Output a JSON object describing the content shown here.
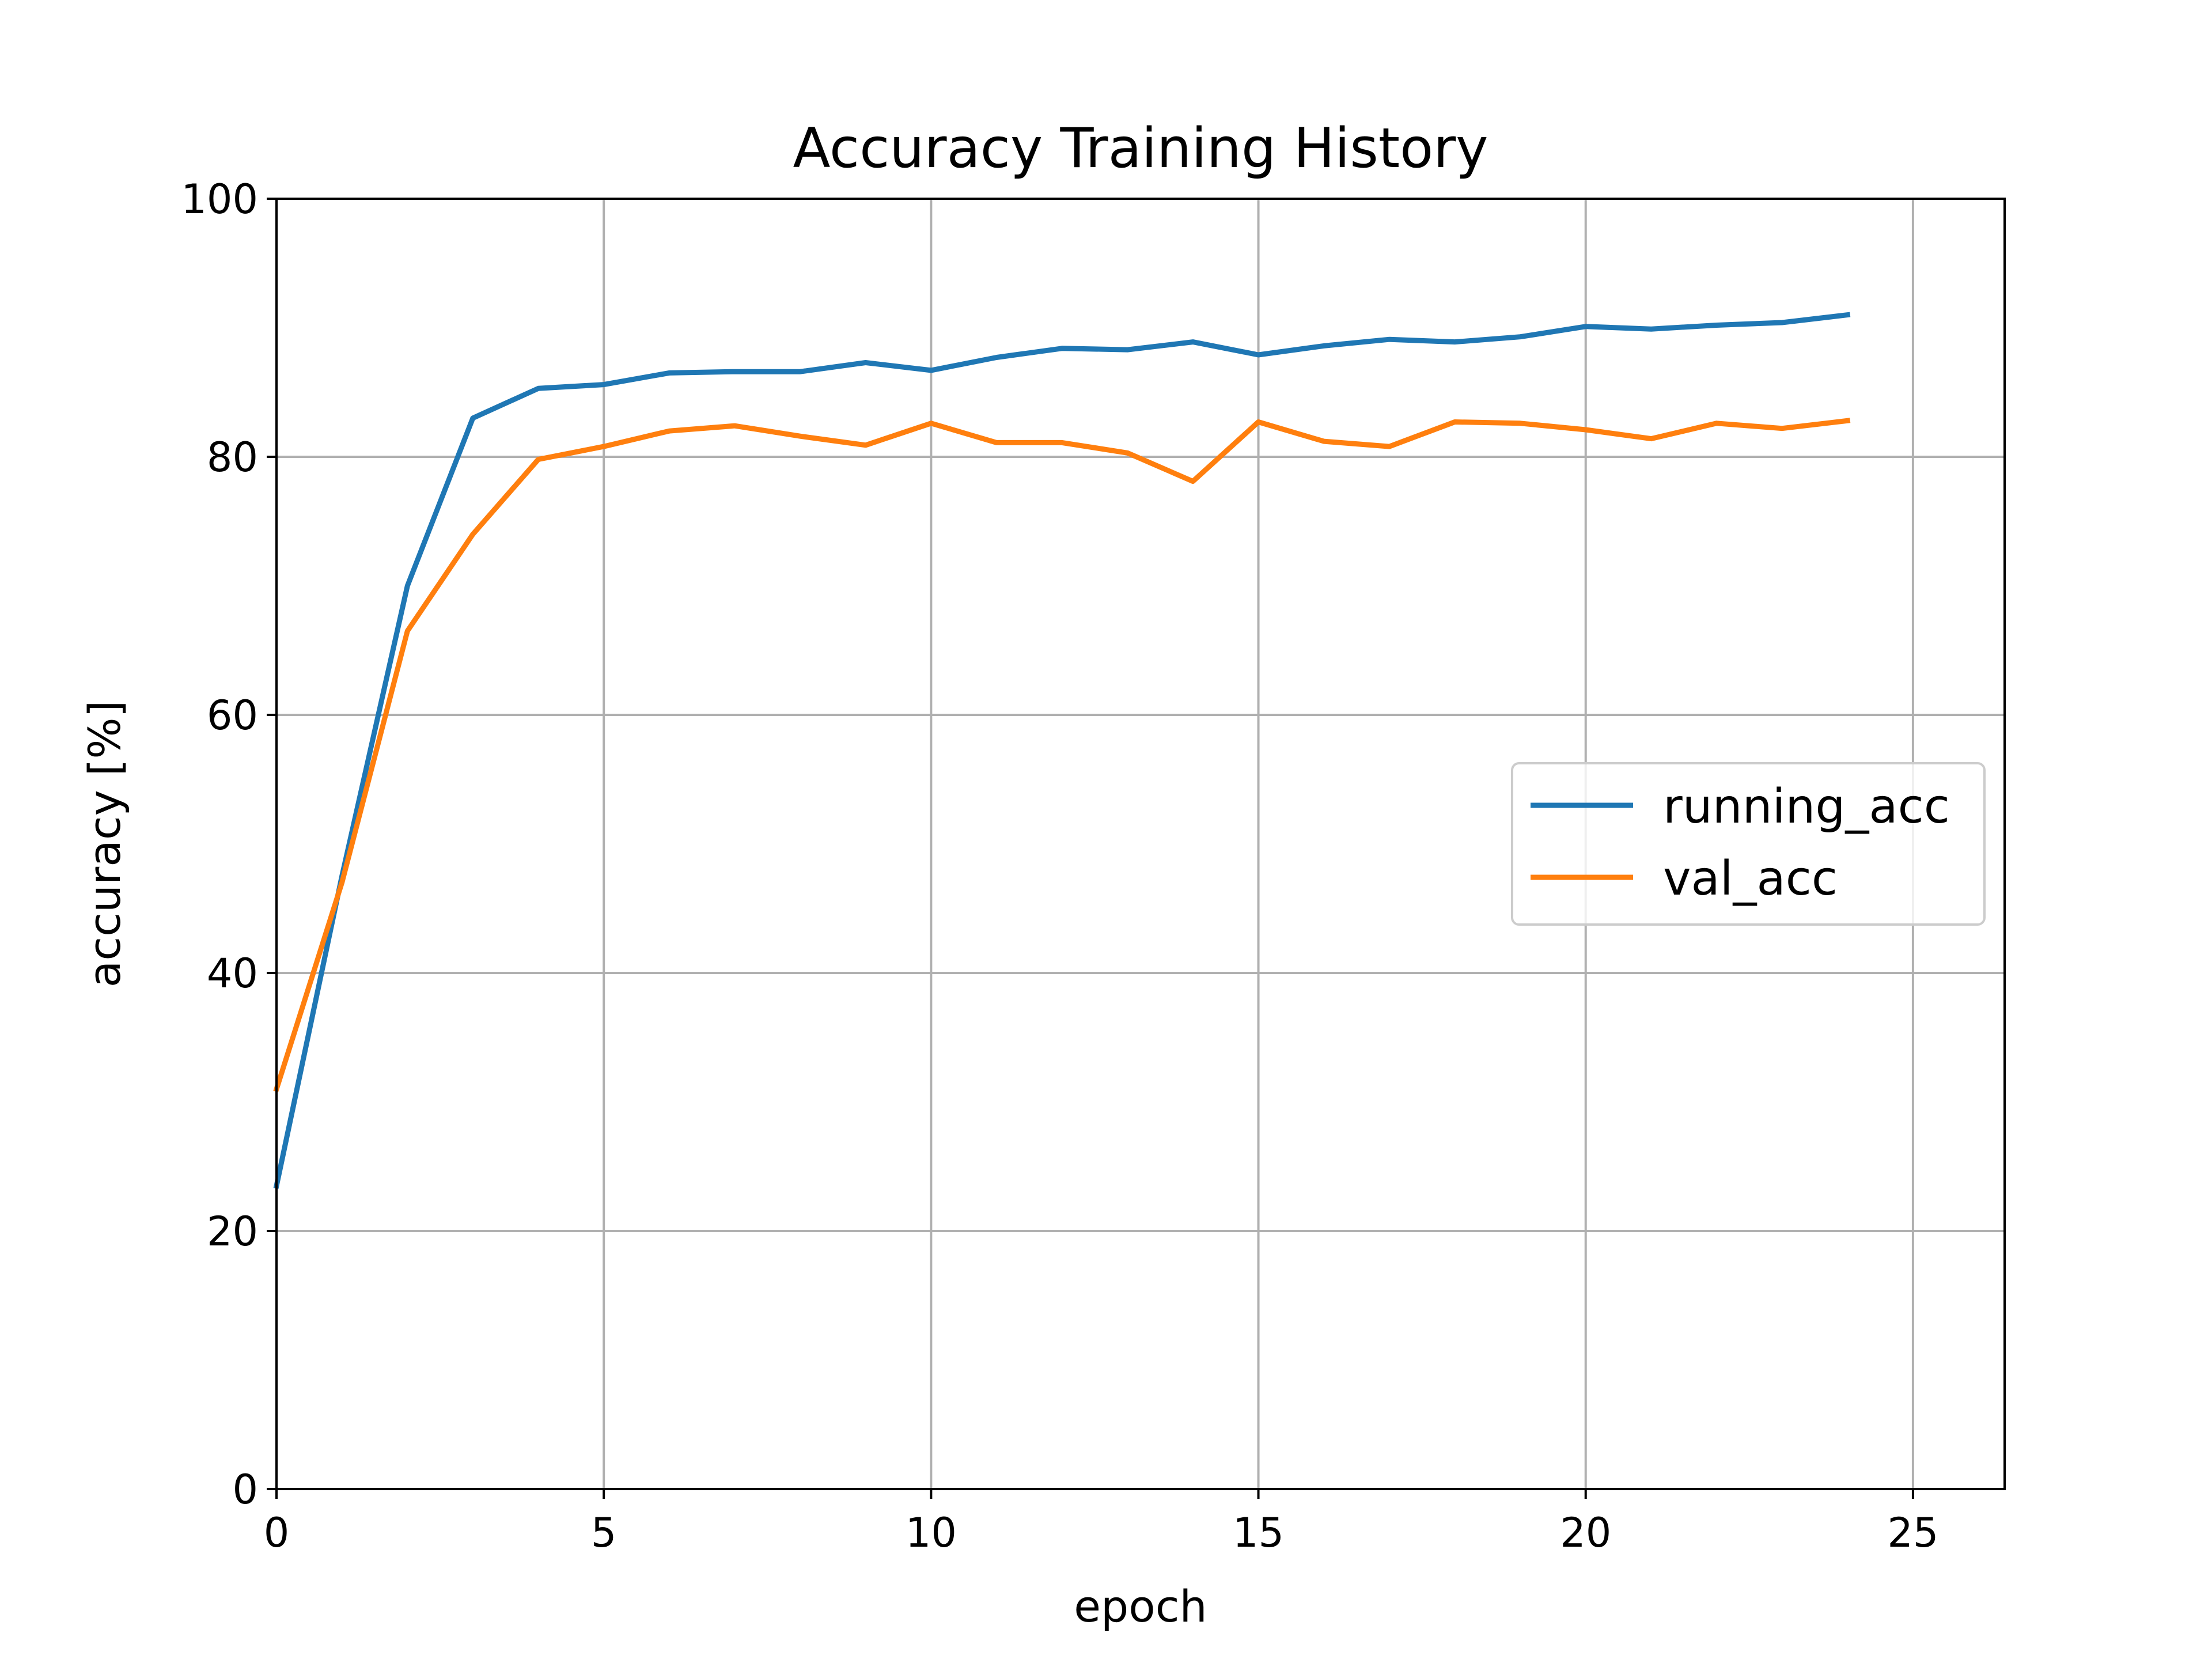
{
  "chart_data": {
    "type": "line",
    "title": "Accuracy Training History",
    "xlabel": "epoch",
    "ylabel": "accuracy [%]",
    "xlim": [
      0,
      26.4
    ],
    "ylim": [
      0,
      100
    ],
    "xticks": [
      "0",
      "5",
      "10",
      "15",
      "20",
      "25"
    ],
    "yticks": [
      "0",
      "20",
      "40",
      "60",
      "80",
      "100"
    ],
    "grid": true,
    "legend_position": "center-right",
    "x": [
      0,
      1,
      2,
      3,
      4,
      5,
      6,
      7,
      8,
      9,
      10,
      11,
      12,
      13,
      14,
      15,
      16,
      17,
      18,
      19,
      20,
      21,
      22,
      23,
      24
    ],
    "series": [
      {
        "name": "running_acc",
        "color": "#1f77b4",
        "values": [
          23.5,
          47.5,
          70.0,
          83.0,
          85.3,
          85.6,
          86.5,
          86.6,
          86.6,
          87.3,
          86.7,
          87.7,
          88.4,
          88.3,
          88.9,
          87.9,
          88.6,
          89.1,
          88.9,
          89.3,
          90.1,
          89.9,
          90.2,
          90.4,
          91.0
        ]
      },
      {
        "name": "val_acc",
        "color": "#ff7f0e",
        "values": [
          31.0,
          47.0,
          66.5,
          74.0,
          79.8,
          80.8,
          82.0,
          82.4,
          81.6,
          80.9,
          82.6,
          81.1,
          81.1,
          80.3,
          78.1,
          82.7,
          81.2,
          80.8,
          82.7,
          82.6,
          82.1,
          81.4,
          82.6,
          82.2,
          82.8
        ]
      }
    ]
  }
}
